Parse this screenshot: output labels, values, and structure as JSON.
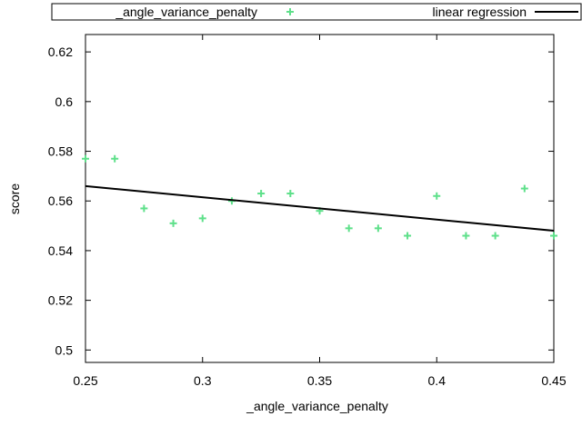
{
  "chart_data": {
    "type": "scatter",
    "xlabel": "_angle_variance_penalty",
    "ylabel": "score",
    "xlim": [
      0.25,
      0.45
    ],
    "ylim": [
      0.495,
      0.627
    ],
    "x_ticks": [
      "0.25",
      "0.3",
      "0.35",
      "0.4",
      "0.45"
    ],
    "y_ticks": [
      "0.5",
      "0.52",
      "0.54",
      "0.56",
      "0.58",
      "0.6",
      "0.62"
    ],
    "legend_position": "top",
    "grid": false,
    "series": [
      {
        "name": "_angle_variance_penalty",
        "kind": "points",
        "marker": "plus",
        "color": "#5ee08a",
        "x": [
          0.25,
          0.2625,
          0.275,
          0.2875,
          0.3,
          0.3125,
          0.325,
          0.3375,
          0.35,
          0.3625,
          0.375,
          0.3875,
          0.4,
          0.4125,
          0.425,
          0.4375,
          0.45
        ],
        "y": [
          0.577,
          0.577,
          0.557,
          0.551,
          0.553,
          0.56,
          0.563,
          0.563,
          0.556,
          0.549,
          0.549,
          0.546,
          0.562,
          0.546,
          0.546,
          0.565,
          0.546
        ]
      },
      {
        "name": "linear regression",
        "kind": "line",
        "color": "#000000",
        "x": [
          0.25,
          0.45
        ],
        "y": [
          0.566,
          0.548
        ]
      }
    ]
  }
}
